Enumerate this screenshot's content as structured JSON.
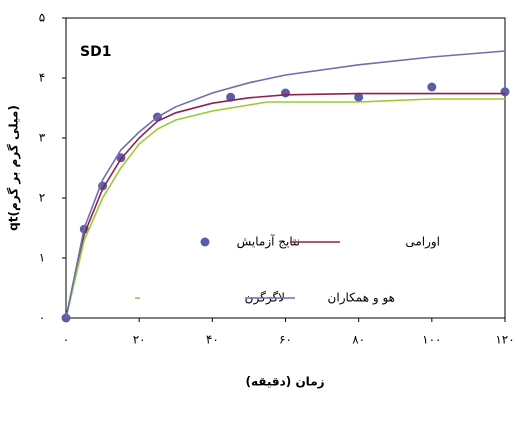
{
  "chart_data": {
    "type": "line",
    "annotation": "SD1",
    "xlabel": "زمان (دقیقه)",
    "ylabel": "qt(میلی گرم بر گرم)",
    "xlim": [
      0,
      120
    ],
    "ylim": [
      0,
      5
    ],
    "xticks": [
      {
        "value": 0,
        "label": "٠"
      },
      {
        "value": 20,
        "label": "٢٠"
      },
      {
        "value": 40,
        "label": "۴٠"
      },
      {
        "value": 60,
        "label": "۶٠"
      },
      {
        "value": 80,
        "label": "٨٠"
      },
      {
        "value": 100,
        "label": "١٠٠"
      },
      {
        "value": 120,
        "label": "١٢٠"
      }
    ],
    "yticks": [
      {
        "value": 0,
        "label": "٠"
      },
      {
        "value": 1,
        "label": "١"
      },
      {
        "value": 2,
        "label": "٢"
      },
      {
        "value": 3,
        "label": "٣"
      },
      {
        "value": 4,
        "label": "۴"
      },
      {
        "value": 5,
        "label": "۵"
      }
    ],
    "grid": false,
    "series": [
      {
        "name": "نتایج آزمایش",
        "style": "markers",
        "color": "#5b5ea6",
        "x": [
          0,
          5,
          10,
          15,
          25,
          45,
          60,
          80,
          100,
          120
        ],
        "values": [
          0,
          1.48,
          2.2,
          2.67,
          3.35,
          3.68,
          3.75,
          3.68,
          3.85,
          3.77
        ]
      },
      {
        "name": "اورامی",
        "style": "line",
        "color": "#8b2252",
        "x": [
          0,
          5,
          10,
          15,
          20,
          25,
          30,
          40,
          50,
          60,
          80,
          100,
          120
        ],
        "values": [
          0,
          1.4,
          2.15,
          2.65,
          3.0,
          3.28,
          3.42,
          3.58,
          3.67,
          3.72,
          3.74,
          3.74,
          3.74
        ]
      },
      {
        "name": "لاگرگرن",
        "style": "line",
        "color": "#99cc33",
        "x": [
          0,
          5,
          10,
          15,
          20,
          25,
          30,
          40,
          50,
          55,
          80,
          100,
          120
        ],
        "values": [
          0,
          1.3,
          2.0,
          2.5,
          2.9,
          3.15,
          3.3,
          3.45,
          3.55,
          3.6,
          3.6,
          3.65,
          3.65
        ]
      },
      {
        "name": "هو و همکاران",
        "style": "line",
        "color": "#6f6fb0",
        "x": [
          0,
          5,
          10,
          15,
          20,
          25,
          30,
          40,
          50,
          60,
          80,
          100,
          120
        ],
        "values": [
          0,
          1.5,
          2.3,
          2.8,
          3.1,
          3.35,
          3.52,
          3.75,
          3.92,
          4.05,
          4.22,
          4.35,
          4.45
        ]
      }
    ]
  }
}
